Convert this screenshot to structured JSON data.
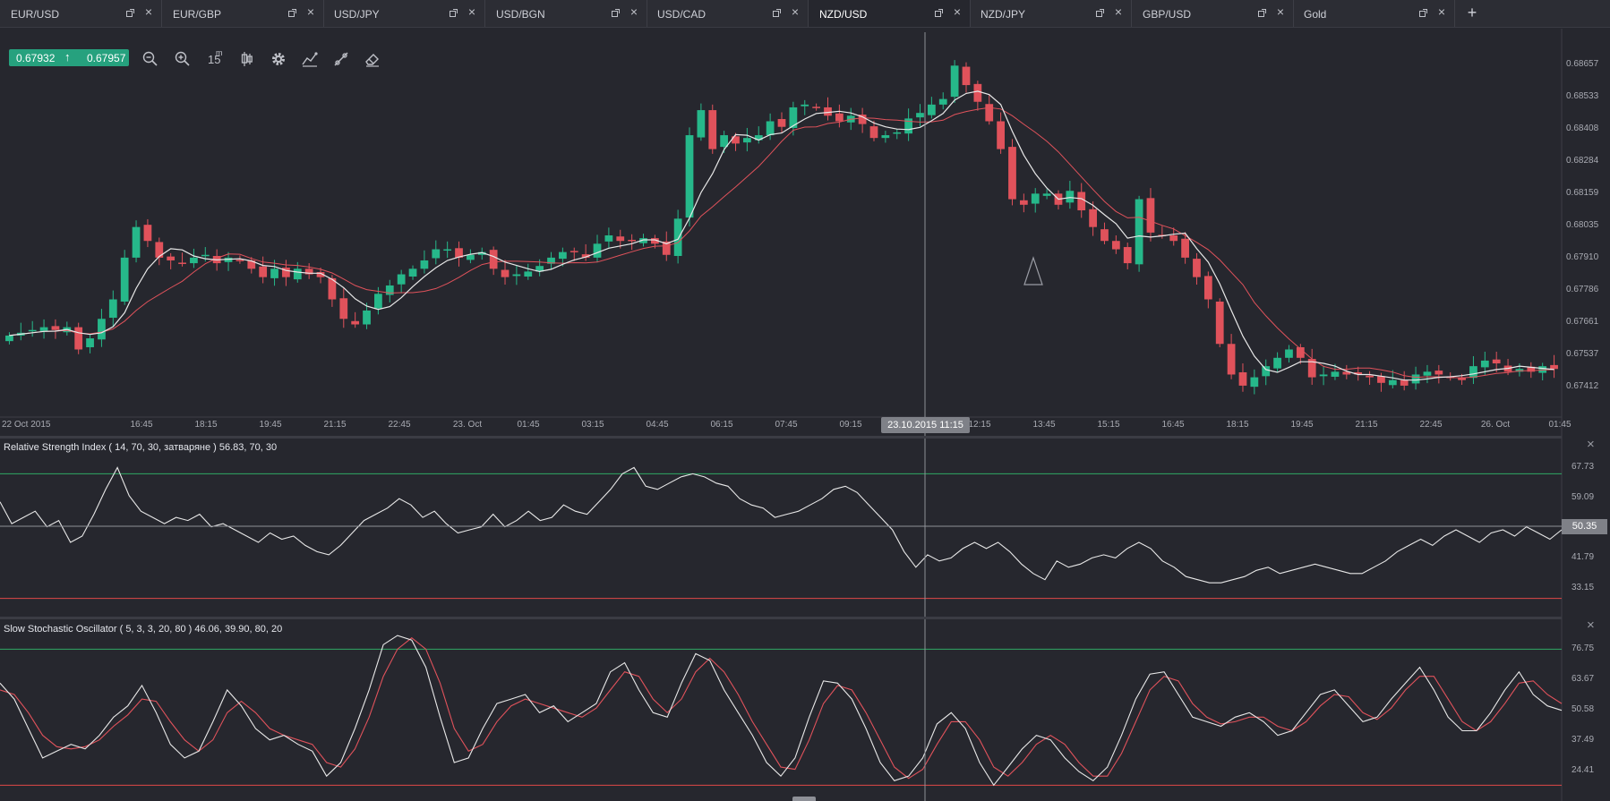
{
  "tabs": [
    {
      "label": "EUR/USD",
      "active": false
    },
    {
      "label": "EUR/GBP",
      "active": false
    },
    {
      "label": "USD/JPY",
      "active": false
    },
    {
      "label": "USD/BGN",
      "active": false
    },
    {
      "label": "USD/CAD",
      "active": false
    },
    {
      "label": "NZD/USD",
      "active": true
    },
    {
      "label": "NZD/JPY",
      "active": false
    },
    {
      "label": "GBP/USD",
      "active": false
    },
    {
      "label": "Gold",
      "active": false
    }
  ],
  "add_tab_label": "+",
  "price": {
    "bid": "0.67932",
    "ask": "0.67957",
    "direction_glyph": "↑"
  },
  "toolbar": {
    "icons": [
      "zoom-out-icon",
      "zoom-in-icon",
      "timeframe",
      "candle-type-icon",
      "settings-gear-icon",
      "indicators-icon",
      "drawing-tools-icon",
      "eraser-icon"
    ],
    "timeframe_value": "15",
    "timeframe_unit": "m"
  },
  "price_axis": [
    "0.68657",
    "0.68533",
    "0.68408",
    "0.68284",
    "0.68159",
    "0.68035",
    "0.67910",
    "0.67786",
    "0.67661",
    "0.67537",
    "0.67412"
  ],
  "time_axis": [
    "22 Oct 2015",
    "16:45",
    "18:15",
    "19:45",
    "21:15",
    "22:45",
    "23. Oct",
    "01:45",
    "03:15",
    "04:45",
    "06:15",
    "07:45",
    "09:15",
    "12:15",
    "13:45",
    "15:15",
    "16:45",
    "18:15",
    "19:45",
    "21:15",
    "22:45",
    "26. Oct",
    "01:45"
  ],
  "crosshair": {
    "time": "23.10.2015 11:15",
    "value": "50.35"
  },
  "rsi_panel": {
    "title": "Relative Strength Index ( 14, 70, 30, затваряне ) 56.83, 70, 30",
    "axis": [
      "67.73",
      "59.09",
      "41.79",
      "33.15"
    ],
    "levels": [
      70,
      30
    ],
    "close_glyph": "×"
  },
  "stoch_panel": {
    "title": "Slow Stochastic Oscillator ( 5, 3, 3, 20, 80 ) 46.06, 39.90, 80, 20",
    "axis": [
      "76.75",
      "63.67",
      "50.58",
      "37.49",
      "24.41"
    ],
    "levels": [
      80,
      20
    ],
    "close_glyph": "×"
  },
  "colors": {
    "background": "#26272e",
    "bull_candle": "#26b88a",
    "bear_candle": "#e0525b",
    "fast_ma": "#e8e8e8",
    "slow_ma": "#e0525b",
    "upper_level": "#2fa866",
    "lower_level": "#e04848",
    "accent": "#26a17e"
  },
  "chart_data": [
    {
      "type": "candlestick",
      "title": "NZD/USD",
      "ylim": [
        0.6735,
        0.6872
      ],
      "x_range": [
        "22 Oct 2015 15:15",
        "26 Oct 2015 01:45"
      ],
      "candle_interval": "15m",
      "close": [
        0.6763,
        0.6764,
        0.6765,
        0.6766,
        0.6765,
        0.6766,
        0.6758,
        0.6762,
        0.6769,
        0.6776,
        0.6791,
        0.6802,
        0.6797,
        0.6791,
        0.679,
        0.6789,
        0.6791,
        0.6792,
        0.6789,
        0.6791,
        0.679,
        0.6787,
        0.6784,
        0.6787,
        0.6784,
        0.6787,
        0.6785,
        0.6784,
        0.6776,
        0.6769,
        0.6767,
        0.6772,
        0.6778,
        0.6781,
        0.6785,
        0.6787,
        0.679,
        0.6794,
        0.6794,
        0.6791,
        0.6792,
        0.6793,
        0.6787,
        0.6784,
        0.6785,
        0.6786,
        0.6788,
        0.6791,
        0.6793,
        0.6793,
        0.6791,
        0.6796,
        0.6799,
        0.6797,
        0.6797,
        0.6798,
        0.6796,
        0.6792,
        0.6805,
        0.6835,
        0.6844,
        0.683,
        0.6835,
        0.6832,
        0.6834,
        0.6835,
        0.684,
        0.6838,
        0.6845,
        0.6846,
        0.6845,
        0.6842,
        0.684,
        0.6842,
        0.6839,
        0.6834,
        0.6835,
        0.6836,
        0.6841,
        0.6843,
        0.6846,
        0.6848,
        0.686,
        0.6853,
        0.6847,
        0.684,
        0.683,
        0.6812,
        0.681,
        0.6814,
        0.6814,
        0.681,
        0.6815,
        0.6808,
        0.6802,
        0.6797,
        0.6794,
        0.6789,
        0.6812,
        0.68,
        0.6799,
        0.6797,
        0.6791,
        0.6784,
        0.6776,
        0.676,
        0.6749,
        0.6745,
        0.6748,
        0.6752,
        0.6755,
        0.6758,
        0.6755,
        0.6748,
        0.6749,
        0.675,
        0.6749,
        0.6749,
        0.6748,
        0.6746,
        0.6747,
        0.6745,
        0.6749,
        0.675,
        0.6749,
        0.6748,
        0.6747,
        0.6752,
        0.6754,
        0.6753,
        0.675,
        0.6751,
        0.675,
        0.6752,
        0.6751
      ]
    },
    {
      "type": "line",
      "title": "Relative Strength Index ( 14, 70, 30, затваряне ) 56.83, 70, 30",
      "ylim": [
        25,
        75
      ],
      "series": [
        {
          "values": [
            61,
            54,
            56,
            58,
            53,
            55,
            48,
            50,
            57,
            65,
            72,
            63,
            58,
            56,
            54,
            56,
            55,
            57,
            53,
            54,
            52,
            50,
            48,
            51,
            49,
            50,
            47,
            45,
            44,
            47,
            51,
            55,
            57,
            59,
            62,
            60,
            56,
            58,
            54,
            51,
            52,
            53,
            57,
            53,
            55,
            58,
            55,
            56,
            60,
            58,
            57,
            61,
            65,
            70,
            72,
            66,
            65,
            67,
            69,
            70,
            69,
            67,
            66,
            62,
            60,
            59,
            56,
            57,
            58,
            60,
            62,
            65,
            66,
            64,
            60,
            56,
            52,
            45,
            40,
            44,
            42,
            43,
            46,
            48,
            46,
            48,
            45,
            41,
            38,
            36,
            42,
            40,
            41,
            43,
            44,
            43,
            46,
            48,
            46,
            42,
            40,
            37,
            36,
            35,
            35,
            36,
            37,
            39,
            40,
            38,
            39,
            40,
            41,
            40,
            39,
            38,
            38,
            40,
            42,
            45,
            47,
            49,
            47,
            50,
            52,
            50,
            48,
            51,
            52,
            50,
            53,
            51,
            49,
            52
          ]
        }
      ]
    },
    {
      "type": "line",
      "title": "Slow Stochastic Oscillator ( 5, 3, 3, 20, 80 ) 46.06, 39.90, 80, 20",
      "ylim": [
        15,
        90
      ],
      "series": [
        {
          "values": [
            65,
            58,
            45,
            32,
            35,
            38,
            36,
            42,
            50,
            55,
            64,
            52,
            38,
            32,
            35,
            48,
            62,
            55,
            45,
            40,
            42,
            38,
            35,
            24,
            30,
            45,
            62,
            82,
            86,
            84,
            72,
            50,
            30,
            32,
            45,
            56,
            58,
            60,
            52,
            55,
            48,
            52,
            56,
            70,
            74,
            62,
            52,
            50,
            65,
            78,
            75,
            62,
            52,
            42,
            30,
            24,
            32,
            50,
            66,
            65,
            58,
            45,
            30,
            22,
            24,
            32,
            47,
            52,
            45,
            30,
            20,
            28,
            36,
            42,
            40,
            32,
            26,
            22,
            28,
            42,
            58,
            69,
            70,
            60,
            50,
            48,
            46,
            50,
            52,
            48,
            42,
            44,
            52,
            60,
            62,
            55,
            48,
            50,
            58,
            65,
            72,
            62,
            50,
            44,
            44,
            52,
            62,
            70,
            60,
            55,
            53
          ]
        },
        {
          "values": [
            62,
            60,
            52,
            42,
            37,
            36,
            37,
            40,
            46,
            51,
            58,
            57,
            48,
            40,
            35,
            40,
            52,
            57,
            52,
            45,
            42,
            40,
            38,
            30,
            28,
            36,
            50,
            68,
            80,
            85,
            80,
            65,
            45,
            35,
            38,
            48,
            55,
            58,
            56,
            54,
            52,
            50,
            54,
            62,
            70,
            68,
            58,
            52,
            58,
            70,
            76,
            70,
            60,
            48,
            38,
            28,
            27,
            40,
            56,
            64,
            62,
            52,
            40,
            28,
            23,
            27,
            38,
            48,
            48,
            40,
            28,
            24,
            30,
            38,
            42,
            38,
            30,
            24,
            24,
            34,
            48,
            62,
            68,
            66,
            56,
            50,
            47,
            48,
            50,
            50,
            46,
            44,
            48,
            55,
            60,
            59,
            52,
            49,
            54,
            62,
            68,
            68,
            58,
            48,
            44,
            48,
            56,
            65,
            66,
            60,
            56
          ]
        }
      ]
    }
  ]
}
